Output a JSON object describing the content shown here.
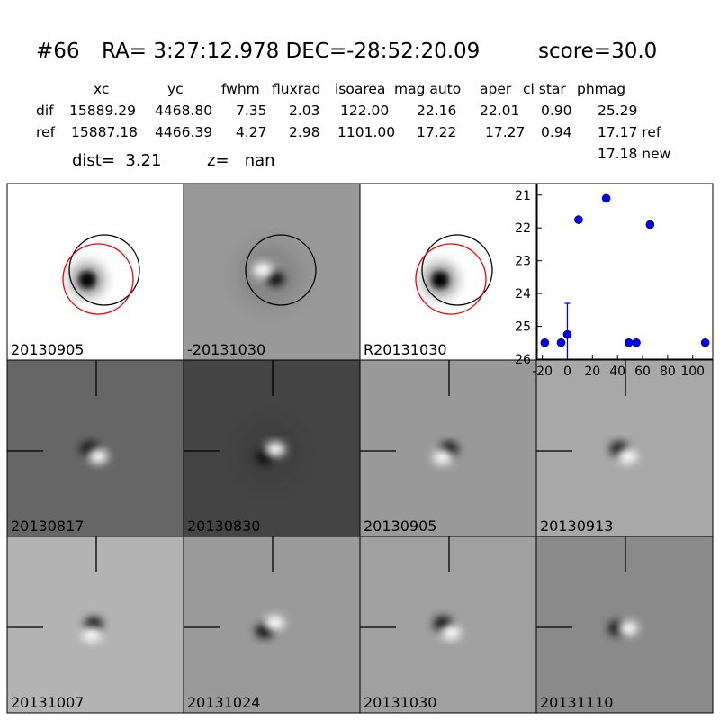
{
  "header": {
    "id": "#66",
    "coords": "RA= 3:27:12.978 DEC=-28:52:20.09",
    "score": "score=30.0",
    "table": {
      "columns": [
        "xc",
        "yc",
        "fwhm",
        "fluxrad",
        "isoarea",
        "mag auto",
        "aper",
        "cl star",
        "phmag"
      ],
      "rows": [
        [
          "dif",
          "15889.29",
          "4468.80",
          "7.35",
          "2.03",
          "122.00",
          "22.16",
          "22.01",
          "0.90",
          "25.29"
        ],
        [
          "ref",
          "15887.18",
          "4466.39",
          "4.27",
          "2.98",
          "1101.00",
          "17.22",
          "17.27",
          "0.94",
          "17.17 ref"
        ]
      ],
      "extra": "17.18 new"
    },
    "dist": "dist=  3.21",
    "z": "z=   nan"
  },
  "stamps": [
    {
      "label": "20130905"
    },
    {
      "label": "-20131030"
    },
    {
      "label": "R20131030"
    },
    {
      "label": "20130817"
    },
    {
      "label": "20130830"
    },
    {
      "label": "20130905",
      "label_color": "#ff0000"
    },
    {
      "label": "20130913"
    },
    {
      "label": "20131007"
    },
    {
      "label": "20131024"
    },
    {
      "label": "20131030"
    },
    {
      "label": "20131110"
    }
  ],
  "chart_data": {
    "type": "scatter",
    "color": "#0000ff",
    "x": [
      -18,
      -5,
      0,
      9,
      31,
      49,
      55,
      66,
      110
    ],
    "values": [
      25.5,
      25.5,
      25.25,
      21.75,
      21.1,
      25.5,
      25.5,
      21.9,
      25.5
    ],
    "errors": [
      null,
      null,
      0.95,
      null,
      null,
      null,
      null,
      null,
      null
    ],
    "xlim": [
      -24,
      116
    ],
    "ylim": [
      26,
      20.65
    ],
    "xticks": [
      -20,
      0,
      20,
      40,
      60,
      80,
      100
    ],
    "yticks": [
      21,
      22,
      23,
      24,
      25,
      26
    ]
  }
}
